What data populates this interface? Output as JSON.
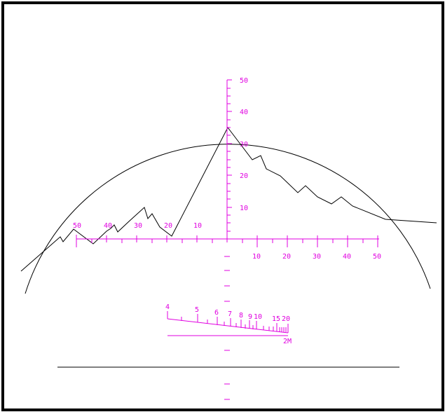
{
  "colors": {
    "frame": "#000000",
    "background": "#ffffff",
    "reticle": "#e000e0",
    "terrain": "#000000"
  },
  "vertical_scale": {
    "labels": [
      "10",
      "20",
      "30",
      "40",
      "50"
    ]
  },
  "horizontal_scale": {
    "left_labels": [
      "50",
      "40",
      "30",
      "20",
      "10"
    ],
    "right_labels": [
      "10",
      "20",
      "30",
      "40",
      "50"
    ]
  },
  "range_scale": {
    "labels": [
      "4",
      "5",
      "6",
      "7",
      "8",
      "9",
      "10",
      "15",
      "20"
    ],
    "unit_label": "2M"
  }
}
